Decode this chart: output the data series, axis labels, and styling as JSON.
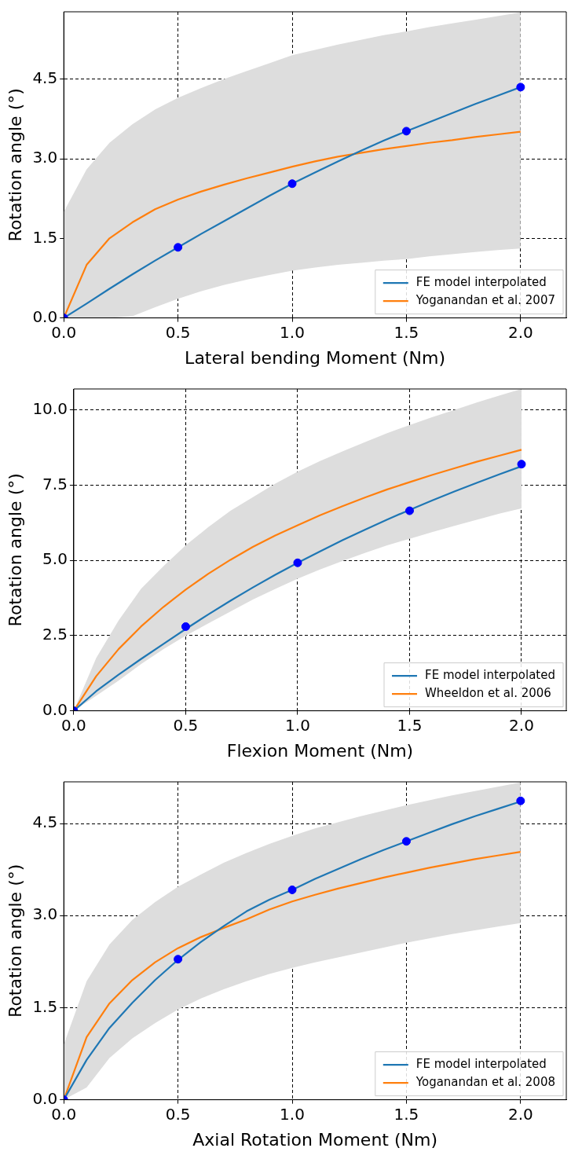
{
  "chart_data": [
    {
      "type": "line",
      "xlabel": "Lateral bending Moment (Nm)",
      "ylabel": "Rotation angle (°)",
      "xlim": [
        0,
        2.2
      ],
      "ylim": [
        0,
        5.77
      ],
      "xticks": [
        {
          "value": 0,
          "label": "0.0"
        },
        {
          "value": 0.5,
          "label": "0.5"
        },
        {
          "value": 1,
          "label": "1.0"
        },
        {
          "value": 1.5,
          "label": "1.5"
        },
        {
          "value": 2,
          "label": "2.0"
        }
      ],
      "yticks": [
        {
          "value": 0,
          "label": "0.0"
        },
        {
          "value": 1.5,
          "label": "1.5"
        },
        {
          "value": 3,
          "label": "3.0"
        },
        {
          "value": 4.5,
          "label": "4.5"
        }
      ],
      "grid": true,
      "legend": "bottom right",
      "line_style": "solid",
      "x": [
        0,
        0.1,
        0.2,
        0.3,
        0.4,
        0.5,
        0.6,
        0.7,
        0.8,
        0.9,
        1.0,
        1.1,
        1.2,
        1.3,
        1.4,
        1.5,
        1.6,
        1.7,
        1.8,
        1.9,
        2.0
      ],
      "series": [
        {
          "name": "FE model interpolated",
          "color": "#1f77b4",
          "values": [
            0,
            0.27,
            0.55,
            0.82,
            1.08,
            1.33,
            1.58,
            1.82,
            2.06,
            2.3,
            2.53,
            2.74,
            2.95,
            3.15,
            3.34,
            3.52,
            3.69,
            3.86,
            4.03,
            4.19,
            4.35
          ]
        },
        {
          "name": "Yoganandan et al. 2007",
          "color": "#ff7f0e",
          "values": [
            0,
            1.0,
            1.5,
            1.8,
            2.05,
            2.23,
            2.38,
            2.51,
            2.63,
            2.74,
            2.85,
            2.95,
            3.04,
            3.11,
            3.18,
            3.24,
            3.3,
            3.35,
            3.41,
            3.46,
            3.51
          ],
          "lower": [
            0,
            0,
            0,
            0.03,
            0.2,
            0.36,
            0.5,
            0.62,
            0.72,
            0.81,
            0.89,
            0.95,
            1.0,
            1.04,
            1.08,
            1.11,
            1.16,
            1.2,
            1.24,
            1.28,
            1.31
          ],
          "upper": [
            2.0,
            2.8,
            3.3,
            3.65,
            3.93,
            4.15,
            4.33,
            4.5,
            4.65,
            4.8,
            4.95,
            5.05,
            5.15,
            5.24,
            5.33,
            5.4,
            5.48,
            5.55,
            5.62,
            5.69,
            5.76
          ]
        },
        {
          "type": "scatter",
          "color": "#0000ff",
          "marker": "circle",
          "x": [
            0,
            0.5,
            1.0,
            1.5,
            2.0
          ],
          "values": [
            0,
            1.33,
            2.53,
            3.52,
            4.35
          ]
        }
      ]
    },
    {
      "type": "line",
      "xlabel": "Flexion Moment (Nm)",
      "ylabel": "Rotation angle (°)",
      "xlim": [
        0,
        2.2
      ],
      "ylim": [
        0,
        10.7
      ],
      "xticks": [
        {
          "value": 0,
          "label": "0.0"
        },
        {
          "value": 0.5,
          "label": "0.5"
        },
        {
          "value": 1,
          "label": "1.0"
        },
        {
          "value": 1.5,
          "label": "1.5"
        },
        {
          "value": 2,
          "label": "2.0"
        }
      ],
      "yticks": [
        {
          "value": 0,
          "label": "0.0"
        },
        2.5,
        {
          "value": 5,
          "label": "5.0"
        },
        7.5,
        {
          "value": 10,
          "label": "10.0"
        }
      ],
      "grid": true,
      "legend": "bottom right",
      "line_style": "solid",
      "x": [
        0,
        0.1,
        0.2,
        0.3,
        0.4,
        0.5,
        0.6,
        0.7,
        0.8,
        0.9,
        1.0,
        1.1,
        1.2,
        1.3,
        1.4,
        1.5,
        1.6,
        1.7,
        1.8,
        1.9,
        2.0
      ],
      "series": [
        {
          "name": "FE model interpolated",
          "color": "#1f77b4",
          "values": [
            0,
            0.65,
            1.2,
            1.72,
            2.22,
            2.72,
            3.2,
            3.66,
            4.1,
            4.52,
            4.92,
            5.3,
            5.67,
            6.02,
            6.36,
            6.68,
            6.99,
            7.29,
            7.58,
            7.86,
            8.13
          ]
        },
        {
          "name": "Wheeldon et al. 2006",
          "color": "#ff7f0e",
          "values": [
            0,
            1.15,
            2.05,
            2.8,
            3.45,
            4.03,
            4.55,
            5.02,
            5.45,
            5.83,
            6.17,
            6.5,
            6.8,
            7.09,
            7.36,
            7.6,
            7.84,
            8.06,
            8.28,
            8.48,
            8.68
          ],
          "lower": [
            0,
            0.5,
            1.0,
            1.55,
            2.05,
            2.5,
            2.9,
            3.3,
            3.7,
            4.05,
            4.39,
            4.7,
            4.98,
            5.25,
            5.5,
            5.72,
            5.94,
            6.15,
            6.35,
            6.55,
            6.73
          ],
          "upper": [
            0,
            1.75,
            3.0,
            4.05,
            4.8,
            5.5,
            6.1,
            6.65,
            7.1,
            7.55,
            7.95,
            8.3,
            8.62,
            8.93,
            9.23,
            9.5,
            9.76,
            10.0,
            10.25,
            10.48,
            10.7
          ]
        },
        {
          "type": "scatter",
          "color": "#0000ff",
          "marker": "circle",
          "x": [
            0,
            0.5,
            1.0,
            1.5,
            2.0
          ],
          "values": [
            0,
            2.8,
            4.92,
            6.65,
            8.2
          ]
        }
      ]
    },
    {
      "type": "line",
      "xlabel": "Axial Rotation Moment (Nm)",
      "ylabel": "Rotation angle (°)",
      "xlim": [
        0,
        2.2
      ],
      "ylim": [
        0,
        5.18
      ],
      "xticks": [
        {
          "value": 0,
          "label": "0.0"
        },
        {
          "value": 0.5,
          "label": "0.5"
        },
        {
          "value": 1,
          "label": "1.0"
        },
        {
          "value": 1.5,
          "label": "1.5"
        },
        {
          "value": 2,
          "label": "2.0"
        }
      ],
      "yticks": [
        {
          "value": 0,
          "label": "0.0"
        },
        {
          "value": 1.5,
          "label": "1.5"
        },
        {
          "value": 3,
          "label": "3.0"
        },
        {
          "value": 4.5,
          "label": "4.5"
        }
      ],
      "grid": true,
      "legend": "bottom right",
      "line_style": "solid",
      "x": [
        0,
        0.1,
        0.2,
        0.3,
        0.4,
        0.5,
        0.6,
        0.7,
        0.8,
        0.9,
        1.0,
        1.1,
        1.2,
        1.3,
        1.4,
        1.5,
        1.6,
        1.7,
        1.8,
        1.9,
        2.0
      ],
      "series": [
        {
          "name": "FE model interpolated",
          "color": "#1f77b4",
          "values": [
            0,
            0.65,
            1.17,
            1.58,
            1.95,
            2.28,
            2.57,
            2.83,
            3.07,
            3.26,
            3.42,
            3.6,
            3.76,
            3.92,
            4.07,
            4.21,
            4.35,
            4.49,
            4.62,
            4.74,
            4.86
          ]
        },
        {
          "name": "Yoganandan et al. 2008",
          "color": "#ff7f0e",
          "values": [
            0,
            1.02,
            1.57,
            1.95,
            2.24,
            2.47,
            2.65,
            2.8,
            2.94,
            3.1,
            3.23,
            3.34,
            3.44,
            3.53,
            3.62,
            3.7,
            3.78,
            3.85,
            3.92,
            3.98,
            4.04
          ],
          "lower": [
            0,
            0.2,
            0.68,
            1.0,
            1.25,
            1.47,
            1.65,
            1.8,
            1.93,
            2.05,
            2.15,
            2.24,
            2.32,
            2.4,
            2.48,
            2.56,
            2.63,
            2.7,
            2.76,
            2.82,
            2.88
          ],
          "upper": [
            0.9,
            1.93,
            2.53,
            2.93,
            3.22,
            3.47,
            3.67,
            3.86,
            4.02,
            4.17,
            4.3,
            4.42,
            4.52,
            4.62,
            4.71,
            4.8,
            4.88,
            4.96,
            5.03,
            5.1,
            5.17
          ]
        },
        {
          "type": "scatter",
          "color": "#0000ff",
          "marker": "circle",
          "x": [
            0,
            0.5,
            1.0,
            1.5,
            2.0
          ],
          "values": [
            0,
            2.29,
            3.42,
            4.21,
            4.87
          ]
        }
      ]
    }
  ]
}
